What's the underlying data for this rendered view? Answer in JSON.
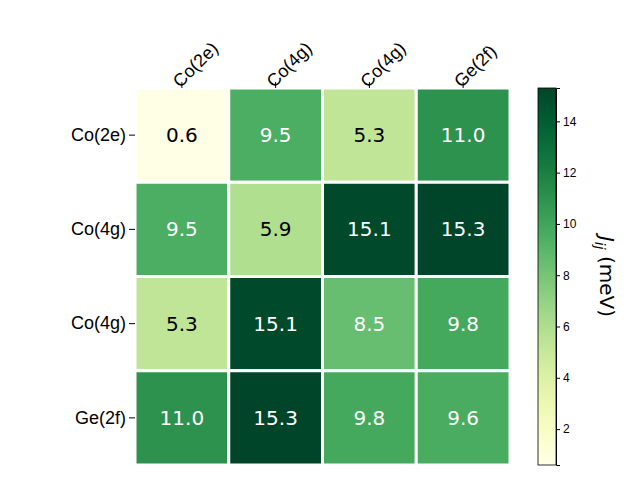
{
  "chart_data": {
    "type": "heatmap",
    "x_categories": [
      "Co(2e)",
      "Co(4g)",
      "Co(4g)",
      "Ge(2f)"
    ],
    "y_categories": [
      "Co(2e)",
      "Co(4g)",
      "Co(4g)",
      "Ge(2f)"
    ],
    "cells": [
      [
        0.6,
        9.5,
        5.3,
        11.0
      ],
      [
        9.5,
        5.9,
        15.1,
        15.3
      ],
      [
        5.3,
        15.1,
        8.5,
        9.8
      ],
      [
        11.0,
        15.3,
        9.8,
        9.6
      ]
    ],
    "value_labels": [
      [
        "0.6",
        "9.5",
        "5.3",
        "11.0"
      ],
      [
        "9.5",
        "5.9",
        "15.1",
        "15.3"
      ],
      [
        "5.3",
        "15.1",
        "8.5",
        "9.8"
      ],
      [
        "11.0",
        "15.3",
        "9.8",
        "9.6"
      ]
    ],
    "data_labels": true,
    "color": "YlGn",
    "colorbar": {
      "range": [
        0.6,
        15.3
      ],
      "ticks": [
        2,
        4,
        6,
        8,
        10,
        12,
        14
      ],
      "label": [
        "J",
        "ij",
        " (meV)"
      ]
    }
  }
}
